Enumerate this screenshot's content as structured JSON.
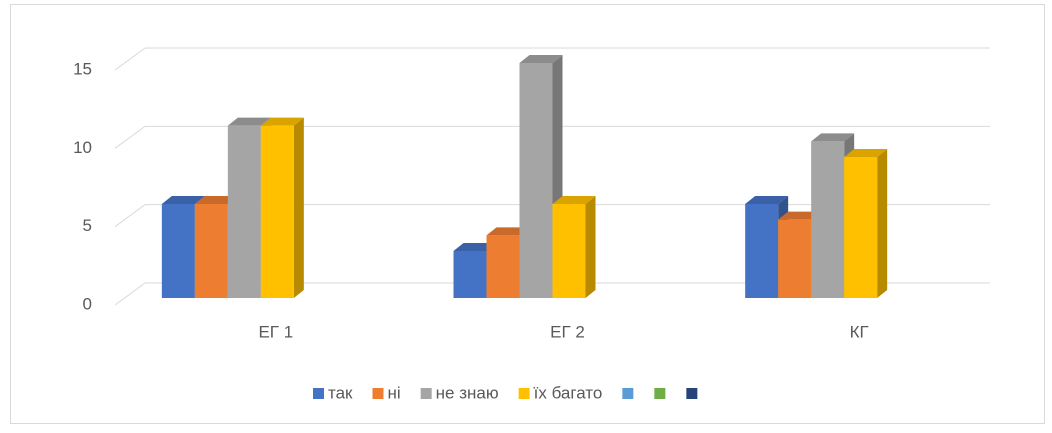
{
  "chart_data": {
    "type": "bar3d",
    "categories": [
      "ЕГ 1",
      "ЕГ 2",
      "КГ"
    ],
    "series": [
      {
        "name": "так",
        "color": "#4472c4",
        "values": [
          6,
          3,
          6
        ]
      },
      {
        "name": "ні",
        "color": "#ed7d31",
        "values": [
          6,
          4,
          5
        ]
      },
      {
        "name": "не знаю",
        "color": "#a5a5a5",
        "values": [
          11,
          15,
          10
        ]
      },
      {
        "name": "їх багато",
        "color": "#ffc000",
        "values": [
          11,
          6,
          9
        ]
      },
      {
        "name": null,
        "color": "#5b9bd5",
        "values": [
          null,
          null,
          null
        ]
      },
      {
        "name": null,
        "color": "#70ad47",
        "values": [
          null,
          null,
          null
        ]
      },
      {
        "name": null,
        "color": "#264478",
        "values": [
          null,
          null,
          null
        ]
      }
    ],
    "ylim": [
      0,
      15
    ],
    "yticks": [
      0,
      5,
      10,
      15
    ],
    "grid": true,
    "legend": "bottom"
  }
}
